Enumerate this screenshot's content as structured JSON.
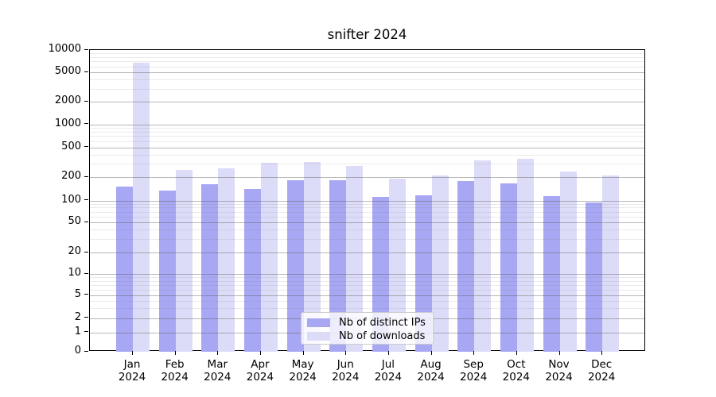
{
  "chart_data": {
    "type": "bar",
    "title": "snifter 2024",
    "categories": [
      "Jan",
      "Feb",
      "Mar",
      "Apr",
      "May",
      "Jun",
      "Jul",
      "Aug",
      "Sep",
      "Oct",
      "Nov",
      "Dec"
    ],
    "year": "2024",
    "series": [
      {
        "name": "Nb of distinct IPs",
        "color": "#a7a7f3",
        "values": [
          150,
          133,
          162,
          140,
          180,
          180,
          110,
          116,
          177,
          167,
          113,
          93
        ]
      },
      {
        "name": "Nb of downloads",
        "color": "#dcdcf8",
        "values": [
          6800,
          250,
          260,
          310,
          320,
          285,
          190,
          210,
          335,
          350,
          240,
          212
        ]
      }
    ],
    "ylabel": "",
    "xlabel": "",
    "yscale": "symlog",
    "ylim": [
      0,
      10000
    ],
    "y_ticks": [
      10000,
      5000,
      2000,
      1000,
      500,
      200,
      100,
      50,
      20,
      10,
      5,
      2,
      1,
      0
    ],
    "grid": "major-and-minor-horizontal",
    "legend_position": "lower center"
  }
}
